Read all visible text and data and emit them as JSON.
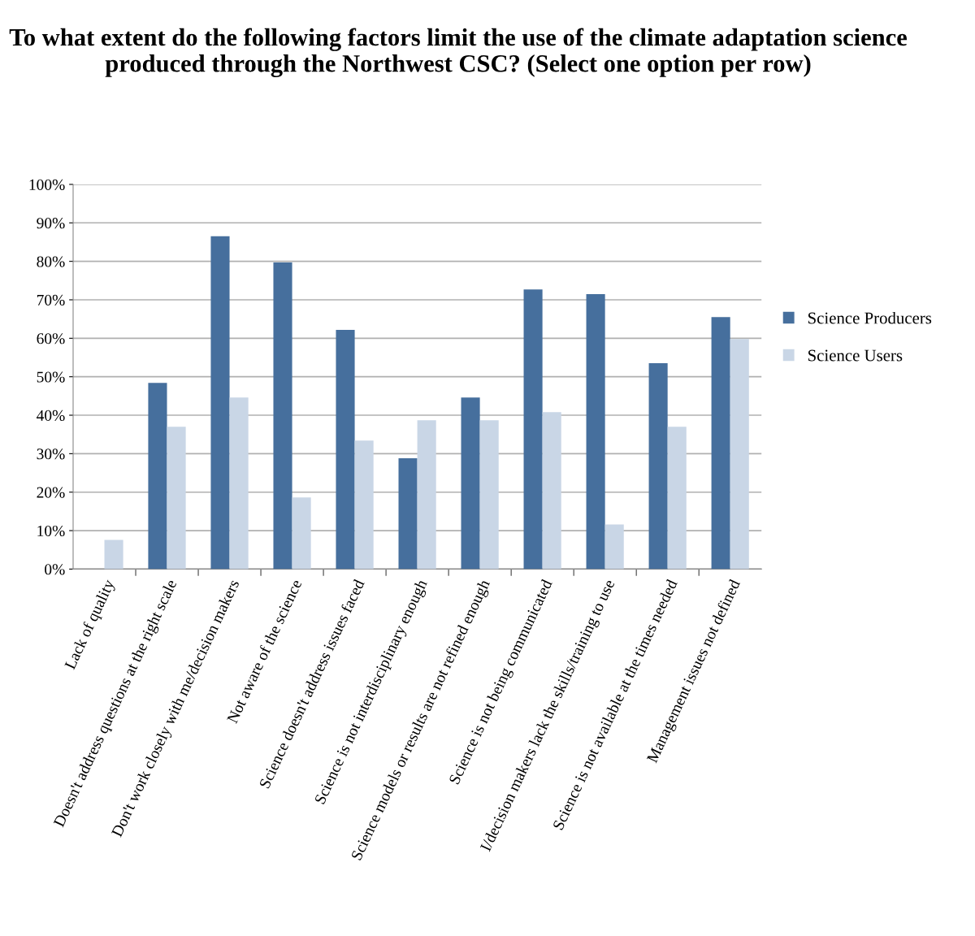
{
  "chart_data": {
    "type": "bar",
    "title": "To what extent do the following factors limit the use of the climate adaptation science produced through the Northwest CSC? (Select one option per row)",
    "categories": [
      "Lack of quality",
      "Doesn't address questions at the right scale",
      "Don't work closely with me/decision makers",
      "Not aware of the science",
      "Science doesn't address issues faced",
      "Science is not interdisciplinary enough",
      "Science models or results are not refined enough",
      "Science is not being communicated",
      "I/decision makers lack the skills/training to use",
      "Science is not available at the times needed",
      "Management issues not defined"
    ],
    "series": [
      {
        "name": "Science Producers",
        "color": "#466f9d",
        "values": [
          0,
          48.4,
          86.5,
          79.7,
          62.2,
          28.8,
          44.6,
          72.7,
          71.5,
          53.5,
          65.5
        ]
      },
      {
        "name": "Science Users",
        "color": "#c9d6e6",
        "values": [
          7.6,
          37,
          44.6,
          18.6,
          33.4,
          38.7,
          38.7,
          40.8,
          11.6,
          37,
          59.8
        ]
      }
    ],
    "ylim": [
      0,
      100
    ],
    "yticks": [
      {
        "value": 0,
        "label": "0%"
      },
      {
        "value": 10,
        "label": "10%"
      },
      {
        "value": 20,
        "label": "20%"
      },
      {
        "value": 30,
        "label": "30%"
      },
      {
        "value": 40,
        "label": "40%"
      },
      {
        "value": 50,
        "label": "50%"
      },
      {
        "value": 60,
        "label": "60%"
      },
      {
        "value": 70,
        "label": "70%"
      },
      {
        "value": 80,
        "label": "80%"
      },
      {
        "value": 90,
        "label": "90%"
      },
      {
        "value": 100,
        "label": "100%"
      }
    ],
    "grid": "y",
    "legend": "right"
  }
}
